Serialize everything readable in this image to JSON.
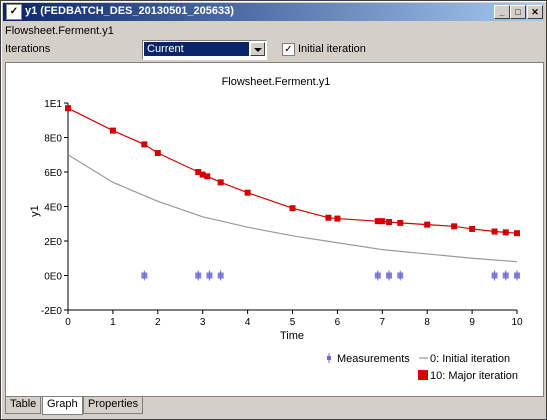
{
  "window": {
    "title": "y1  (FEDBATCH_DES_20130501_205633)",
    "icon_name": "app-icon",
    "controls": [
      "minimize-icon",
      "maximize-icon",
      "close-icon"
    ]
  },
  "path_label": "Flowsheet.Ferment.y1",
  "iterations": {
    "label": "Iterations",
    "selected": "Current",
    "checkbox_label": "Initial iteration",
    "checkbox_checked": true
  },
  "tabs": [
    "Table",
    "Graph",
    "Properties"
  ],
  "active_tab": "Graph",
  "chart_data": {
    "type": "line",
    "title": "Flowsheet.Ferment.y1",
    "xlabel": "Time",
    "ylabel": "y1",
    "xlim": [
      0,
      10
    ],
    "ylim": [
      -2,
      10
    ],
    "x_ticks": [
      "0",
      "1",
      "2",
      "3",
      "4",
      "5",
      "6",
      "7",
      "8",
      "9",
      "10"
    ],
    "y_ticks": [
      "-2E0",
      "0E0",
      "2E0",
      "4E0",
      "6E0",
      "8E0",
      "1E1"
    ],
    "legend_placement": "bottom-right",
    "colors": {
      "measurements": "#6b6bd6",
      "initial": "#999999",
      "major": "#d40000"
    },
    "series": [
      {
        "name": "Measurements",
        "style": "marker",
        "x": [
          1.7,
          2.9,
          3.15,
          3.4,
          6.9,
          7.15,
          7.4,
          9.5,
          9.75,
          10.0
        ],
        "y": [
          0,
          0,
          0,
          0,
          0,
          0,
          0,
          0,
          0,
          0
        ]
      },
      {
        "name": "0: Initial iteration",
        "style": "line",
        "x": [
          0,
          1,
          2,
          3,
          4,
          5,
          6,
          7,
          8,
          9,
          10
        ],
        "y": [
          7.0,
          5.4,
          4.3,
          3.4,
          2.8,
          2.3,
          1.9,
          1.5,
          1.25,
          1.0,
          0.8
        ]
      },
      {
        "name": "10: Major iteration",
        "style": "line-marker",
        "x": [
          0,
          1,
          1.7,
          2.0,
          2.9,
          3.0,
          3.1,
          3.4,
          4.0,
          5.0,
          5.8,
          6.0,
          6.9,
          7.0,
          7.15,
          7.4,
          8.0,
          8.6,
          9.0,
          9.5,
          9.75,
          10.0
        ],
        "y": [
          9.7,
          8.4,
          7.6,
          7.1,
          6.0,
          5.85,
          5.75,
          5.4,
          4.8,
          3.9,
          3.35,
          3.3,
          3.15,
          3.15,
          3.1,
          3.05,
          2.95,
          2.85,
          2.7,
          2.55,
          2.5,
          2.45
        ]
      }
    ]
  }
}
